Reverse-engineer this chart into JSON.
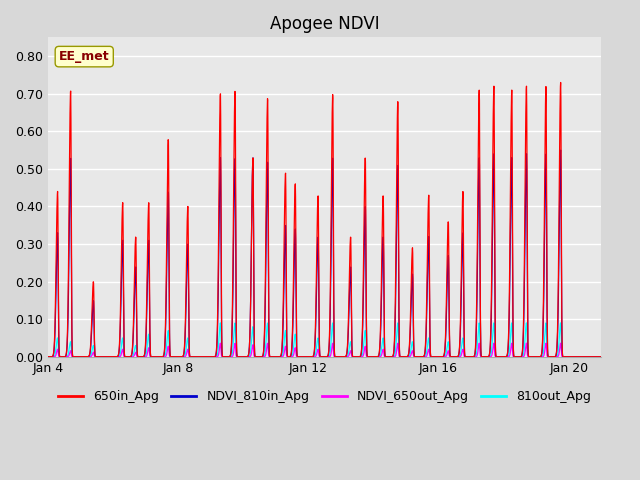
{
  "title": "Apogee NDVI",
  "annotation_text": "EE_met",
  "ylim": [
    0.0,
    0.85
  ],
  "yticks": [
    0.0,
    0.1,
    0.2,
    0.3,
    0.4,
    0.5,
    0.6,
    0.7,
    0.8
  ],
  "bg_color": "#d8d8d8",
  "plot_bg_color": "#e8e8e8",
  "legend_labels": [
    "650in_Apg",
    "NDVI_810in_Apg",
    "NDVI_650out_Apg",
    "810out_Apg"
  ],
  "legend_colors": [
    "#ff0000",
    "#0000cc",
    "#ff00ff",
    "#00ffff"
  ],
  "xticklabels": [
    "Jan 4",
    "Jan 8",
    "Jan 12",
    "Jan 16",
    "Jan 20"
  ],
  "title_fontsize": 12,
  "n_days": 18,
  "spike_events": [
    {
      "day": 0.3,
      "red": 0.44,
      "blue": 0.33,
      "cyan": 0.05
    },
    {
      "day": 0.7,
      "red": 0.71,
      "blue": 0.53,
      "cyan": 0.04
    },
    {
      "day": 1.4,
      "red": 0.2,
      "blue": 0.15,
      "cyan": 0.03
    },
    {
      "day": 2.3,
      "red": 0.41,
      "blue": 0.31,
      "cyan": 0.05
    },
    {
      "day": 2.7,
      "red": 0.32,
      "blue": 0.24,
      "cyan": 0.03
    },
    {
      "day": 3.1,
      "red": 0.41,
      "blue": 0.31,
      "cyan": 0.06
    },
    {
      "day": 3.7,
      "red": 0.58,
      "blue": 0.44,
      "cyan": 0.07
    },
    {
      "day": 4.3,
      "red": 0.4,
      "blue": 0.3,
      "cyan": 0.05
    },
    {
      "day": 5.3,
      "red": 0.7,
      "blue": 0.53,
      "cyan": 0.09
    },
    {
      "day": 5.75,
      "red": 0.71,
      "blue": 0.53,
      "cyan": 0.09
    },
    {
      "day": 6.3,
      "red": 0.53,
      "blue": 0.53,
      "cyan": 0.08
    },
    {
      "day": 6.75,
      "red": 0.69,
      "blue": 0.52,
      "cyan": 0.09
    },
    {
      "day": 7.3,
      "red": 0.49,
      "blue": 0.35,
      "cyan": 0.07
    },
    {
      "day": 7.6,
      "red": 0.46,
      "blue": 0.34,
      "cyan": 0.06
    },
    {
      "day": 8.3,
      "red": 0.43,
      "blue": 0.32,
      "cyan": 0.05
    },
    {
      "day": 8.75,
      "red": 0.7,
      "blue": 0.53,
      "cyan": 0.09
    },
    {
      "day": 9.3,
      "red": 0.32,
      "blue": 0.24,
      "cyan": 0.04
    },
    {
      "day": 9.75,
      "red": 0.53,
      "blue": 0.4,
      "cyan": 0.07
    },
    {
      "day": 10.3,
      "red": 0.43,
      "blue": 0.32,
      "cyan": 0.05
    },
    {
      "day": 10.75,
      "red": 0.68,
      "blue": 0.51,
      "cyan": 0.09
    },
    {
      "day": 11.2,
      "red": 0.29,
      "blue": 0.22,
      "cyan": 0.04
    },
    {
      "day": 11.7,
      "red": 0.43,
      "blue": 0.32,
      "cyan": 0.05
    },
    {
      "day": 12.3,
      "red": 0.36,
      "blue": 0.27,
      "cyan": 0.04
    },
    {
      "day": 12.75,
      "red": 0.44,
      "blue": 0.33,
      "cyan": 0.05
    },
    {
      "day": 13.25,
      "red": 0.71,
      "blue": 0.53,
      "cyan": 0.09
    },
    {
      "day": 13.7,
      "red": 0.72,
      "blue": 0.54,
      "cyan": 0.09
    },
    {
      "day": 14.25,
      "red": 0.71,
      "blue": 0.53,
      "cyan": 0.09
    },
    {
      "day": 14.7,
      "red": 0.72,
      "blue": 0.54,
      "cyan": 0.09
    },
    {
      "day": 15.3,
      "red": 0.72,
      "blue": 0.54,
      "cyan": 0.09
    },
    {
      "day": 15.75,
      "red": 0.73,
      "blue": 0.55,
      "cyan": 0.09
    }
  ]
}
